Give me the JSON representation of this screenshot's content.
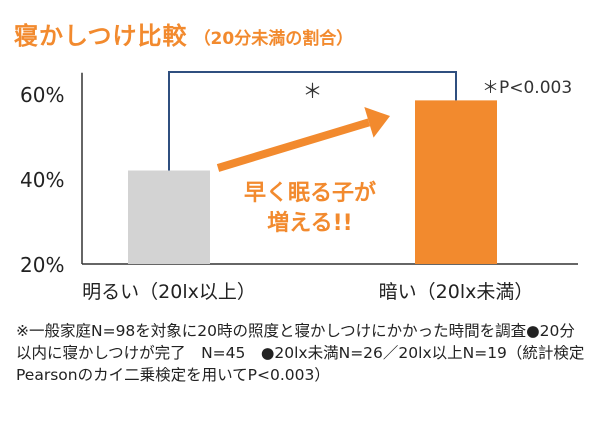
{
  "header": {
    "title": "寝かしつけ比較",
    "subtitle": "（20分未満の割合）"
  },
  "chart_data": {
    "type": "bar",
    "categories": [
      "明るい（20lx以上）",
      "暗い（20lx未満）"
    ],
    "values": [
      42,
      58.5
    ],
    "ylim": [
      20,
      65
    ],
    "yticks": [
      20,
      40,
      60
    ],
    "ytick_labels": [
      "20%",
      "40%",
      "60%"
    ],
    "bar_colors": [
      "#d3d3d3",
      "#f28a2e"
    ],
    "significance_mark": "＊",
    "significance_note": "＊P<0.003",
    "annotation_lines": [
      "早く眠る子が",
      "増える!!"
    ],
    "annotation_color": "#f28a2e",
    "grid": false
  },
  "footnote": "※一般家庭N=98を対象に20時の照度と寝かしつけにかかった時間を調査●20分以内に寝かしつけが完了　N=45　●20lx未満N=26／20lx以上N=19（統計検定　Pearsonのカイ二乗検定を用いてP<0.003）"
}
